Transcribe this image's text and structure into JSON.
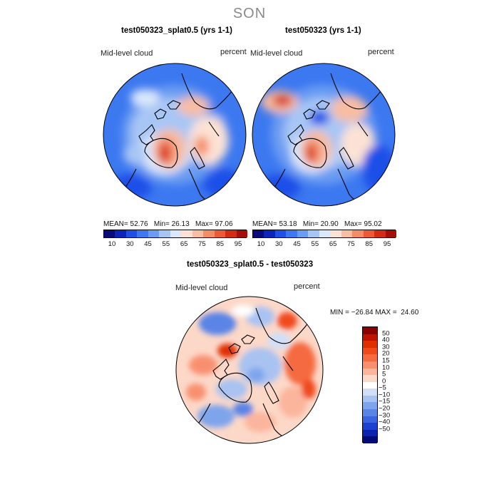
{
  "suptitle": "SON",
  "top_colorbar": {
    "colors": [
      "#0a0a7a",
      "#0b25b8",
      "#1e50e8",
      "#3c78f0",
      "#6a9cf2",
      "#a8c6f5",
      "#dbe8fb",
      "#fbe2d4",
      "#f8bda3",
      "#f48d66",
      "#ee5a35",
      "#d52a14",
      "#a50f0a"
    ],
    "tick_labels": [
      "10",
      "30",
      "45",
      "55",
      "65",
      "75",
      "85",
      "95"
    ]
  },
  "diff_colorbar": {
    "colors": [
      "#8b0000",
      "#c01200",
      "#e02e00",
      "#f04a1a",
      "#f56a40",
      "#f89070",
      "#fbb59c",
      "#fcd8c8",
      "#ffffff",
      "#d0def8",
      "#a8c2f2",
      "#7ea4ec",
      "#5a84e6",
      "#3a64e0",
      "#1c40cf",
      "#0b24b0",
      "#020b7a"
    ],
    "tick_labels": [
      "50",
      "40",
      "30",
      "20",
      "15",
      "10",
      "5",
      "0",
      "−5",
      "−10",
      "−15",
      "−20",
      "−30",
      "−40",
      "−50"
    ]
  },
  "chart_data": [
    {
      "type": "heatmap",
      "projection": "polar-stereographic (north pole)",
      "title": "test050323_splat0.5 (yrs 1-1)",
      "variable": "Mid-level cloud",
      "units": "percent",
      "mean": "52.76",
      "min": "26.13",
      "max": "97.06",
      "stats_labels": {
        "mean": "MEAN=",
        "min": "Min=",
        "max": "Max="
      },
      "levels": [
        10,
        30,
        45,
        55,
        65,
        75,
        85,
        95
      ]
    },
    {
      "type": "heatmap",
      "projection": "polar-stereographic (north pole)",
      "title": "test050323 (yrs 1-1)",
      "variable": "Mid-level cloud",
      "units": "percent",
      "mean": "53.18",
      "min": "20.90",
      "max": "95.02",
      "stats_labels": {
        "mean": "MEAN=",
        "min": "Min=",
        "max": "Max="
      },
      "levels": [
        10,
        30,
        45,
        55,
        65,
        75,
        85,
        95
      ]
    },
    {
      "type": "heatmap",
      "projection": "polar-stereographic (north pole)",
      "title": "test050323_splat0.5 - test050323",
      "variable": "Mid-level cloud",
      "units": "percent",
      "min": "−26.84",
      "max": "24.60",
      "stats_labels": {
        "min": "MIN =",
        "max": "MAX ="
      },
      "levels": [
        50,
        40,
        30,
        20,
        15,
        10,
        5,
        0,
        -5,
        -10,
        -15,
        -20,
        -30,
        -40,
        -50
      ]
    }
  ]
}
